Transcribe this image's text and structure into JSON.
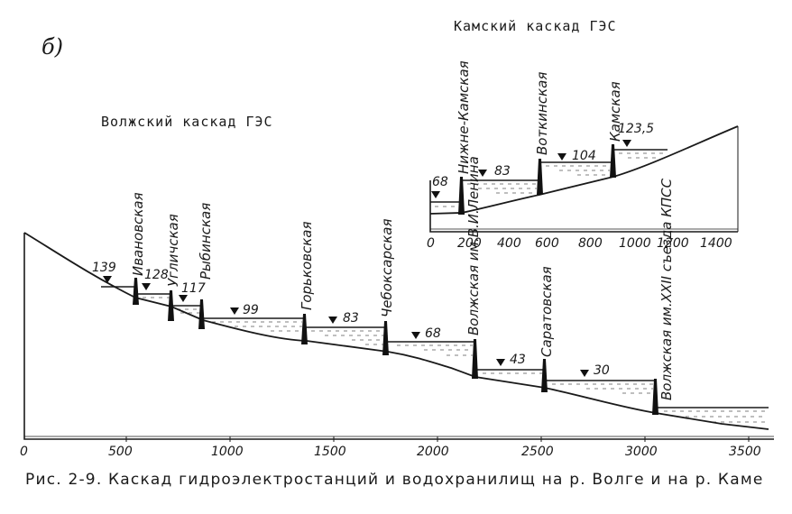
{
  "panel_letter": "б)",
  "volga": {
    "title": "Волжский каскад ГЭС",
    "axis_ticks": [
      "0",
      "500",
      "1000",
      "1500",
      "2000",
      "2500",
      "3000",
      "3500"
    ],
    "plants": [
      {
        "name": "Ивановская",
        "level": "139"
      },
      {
        "name": "Угличская",
        "level": "128"
      },
      {
        "name": "Рыбинская",
        "level": "117"
      },
      {
        "name": "Горьковская",
        "level": "99"
      },
      {
        "name": "Чебоксарская",
        "level": "83"
      },
      {
        "name": "Волжская им.В.И.Ленина",
        "level": "68"
      },
      {
        "name": "Саратовская",
        "level": "43"
      },
      {
        "name": "Волжская им.XXII съезда КПСС",
        "level": "30"
      }
    ]
  },
  "kama": {
    "title": "Камский каскад ГЭС",
    "axis_ticks": [
      "0",
      "200",
      "400",
      "600",
      "800",
      "1000",
      "1200",
      "1400"
    ],
    "plants": [
      {
        "name": "Нижне-Камская",
        "level": "68"
      },
      {
        "name": "Воткинская",
        "level": "83"
      },
      {
        "name": "Камская",
        "level": "104"
      }
    ],
    "top_level": "123,5"
  },
  "caption": "Рис. 2-9. Каскад гидроэлектростанций и водохранилищ на р. Волге и на р. Каме"
}
